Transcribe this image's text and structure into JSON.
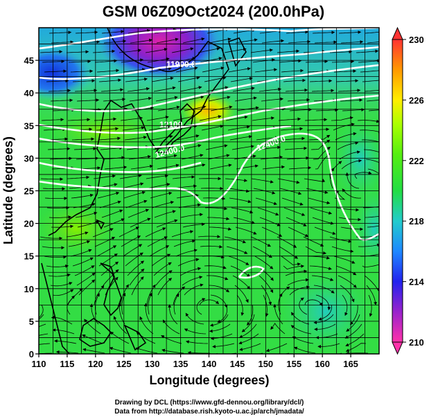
{
  "title": "GSM 06Z09Oct2024 (200.0hPa)",
  "axes": {
    "xlabel": "Longitude (degrees)",
    "ylabel": "Latitude  (degrees)",
    "xticks": [
      "110",
      "115",
      "120",
      "125",
      "130",
      "135",
      "140",
      "145",
      "150",
      "155",
      "160",
      "165"
    ],
    "yticks": [
      "0",
      "5",
      "10",
      "15",
      "20",
      "25",
      "30",
      "35",
      "40",
      "45"
    ],
    "xlim": [
      110,
      170
    ],
    "ylim": [
      0,
      50
    ]
  },
  "colorbar": {
    "labels": [
      "230",
      "226",
      "222",
      "218",
      "214",
      "210"
    ],
    "range": [
      210,
      230
    ],
    "colors": [
      "#ff3399",
      "#9900cc",
      "#3333ff",
      "#1e90ff",
      "#33cccc",
      "#33dd33",
      "#66ee00",
      "#ccff00",
      "#ffdd00",
      "#ff9900",
      "#ff3333"
    ]
  },
  "contour_labels": [
    "11900.0",
    "12100",
    "12400.0",
    "12400.0"
  ],
  "credits": {
    "line1": "Drawing by DCL (https://www.gfd-dennou.org/library/dcl/)",
    "line2": "Data from http://database.rish.kyoto-u.ac.jp/arch/jmadata/"
  }
}
